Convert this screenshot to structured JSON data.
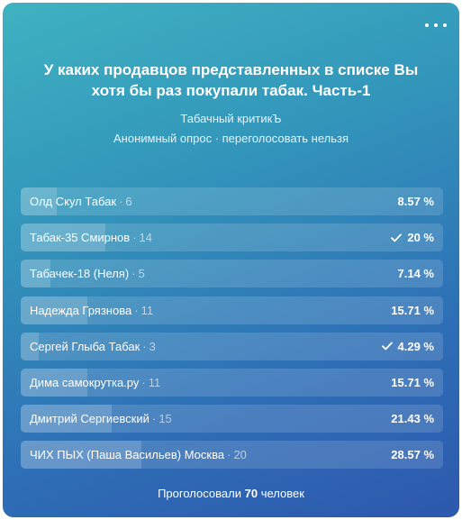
{
  "poll": {
    "title": "У каких продавцов представленных в списке Вы хотя бы раз покупали табак. Часть-1",
    "author": "Табачный критикЪ",
    "meta": "Анонимный опрос · переголосовать нельзя",
    "more_icon": "more-horizontal-icon",
    "options": [
      {
        "label": "Олд Скул Табак",
        "count": "6",
        "percent_text": "8.57 %",
        "percent": 8.57,
        "voted": false
      },
      {
        "label": "Табак-35 Смирнов",
        "count": "14",
        "percent_text": "20 %",
        "percent": 20,
        "voted": true
      },
      {
        "label": "Табачек-18 (Неля)",
        "count": "5",
        "percent_text": "7.14 %",
        "percent": 7.14,
        "voted": false
      },
      {
        "label": "Надежда Грязнова",
        "count": "11",
        "percent_text": "15.71 %",
        "percent": 15.71,
        "voted": false
      },
      {
        "label": "Сергей Глыба Табак",
        "count": "3",
        "percent_text": "4.29 %",
        "percent": 4.29,
        "voted": true
      },
      {
        "label": "Дима самокрутка.ру",
        "count": "11",
        "percent_text": "15.71 %",
        "percent": 15.71,
        "voted": false
      },
      {
        "label": "Дмитрий Сергиевский",
        "count": "15",
        "percent_text": "21.43 %",
        "percent": 21.43,
        "voted": false
      },
      {
        "label": "ЧИХ ПЫХ (Паша Васильев) Москва",
        "count": "20",
        "percent_text": "28.57 %",
        "percent": 28.57,
        "voted": false
      }
    ],
    "footer_prefix": "Проголосовали",
    "footer_count": "70",
    "footer_suffix": "человек",
    "colors": {
      "gradient_start": "#3fb2c1",
      "gradient_end": "#2d58ae"
    }
  }
}
